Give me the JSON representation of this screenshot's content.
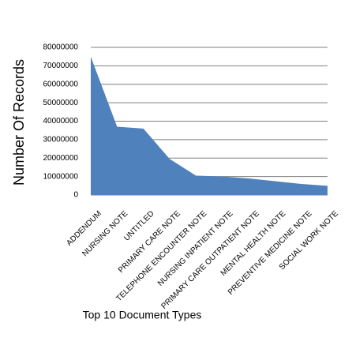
{
  "chart_data": {
    "type": "area",
    "xlabel": "Top 10 Document Types",
    "ylabel": "Number Of Records",
    "categories": [
      "ADDENDUM",
      "NURSING NOTE",
      "UNTITLED",
      "PRIMARY CARE NOTE",
      "TELEPHONE ENCOUNTER NOTE",
      "NURSING INPATIENT NOTE",
      "PRIMARY CARE OUTPATIENT NOTE",
      "MENTAL HEALTH NOTE",
      "PREVENTIVE MEDICINE NOTE",
      "SOCIAL WORK NOTE"
    ],
    "values": [
      75000000,
      37000000,
      36000000,
      19500000,
      10500000,
      10000000,
      9000000,
      7500000,
      6000000,
      5000000
    ],
    "color": "#4f81bd",
    "ylim": [
      0,
      80000000
    ],
    "yticks": [
      0,
      10000000,
      20000000,
      30000000,
      40000000,
      50000000,
      60000000,
      70000000,
      80000000
    ],
    "grid": true
  }
}
